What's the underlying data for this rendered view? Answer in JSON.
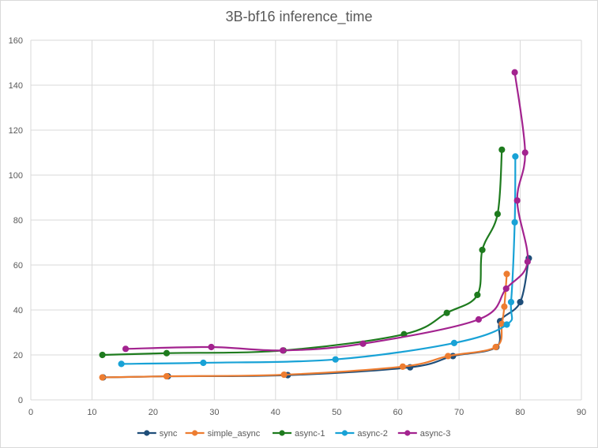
{
  "chart_data": {
    "type": "scatter",
    "title": "3B-bf16 inference_time",
    "xlabel": "",
    "ylabel": "",
    "xlim": [
      0,
      90
    ],
    "ylim": [
      0,
      160
    ],
    "x_ticks": [
      "0",
      "10",
      "20",
      "30",
      "40",
      "50",
      "60",
      "70",
      "80",
      "90"
    ],
    "y_ticks": [
      "0",
      "20",
      "40",
      "60",
      "80",
      "100",
      "120",
      "140",
      "160"
    ],
    "grid": true,
    "smooth_lines": true,
    "legend_position": "bottom",
    "series": [
      {
        "name": "sync",
        "color": "#1f4e79",
        "x": [
          11.8,
          22.4,
          42.0,
          62.0,
          69.0,
          76.1,
          76.7,
          80.0,
          81.4
        ],
        "y": [
          10.0,
          10.5,
          11.0,
          14.5,
          19.5,
          23.5,
          35.0,
          43.5,
          63.0
        ]
      },
      {
        "name": "simple_async",
        "color": "#ed7d31",
        "x": [
          11.7,
          22.2,
          41.4,
          60.8,
          68.2,
          76.0,
          77.0,
          77.4,
          77.8
        ],
        "y": [
          10.0,
          10.5,
          11.2,
          14.8,
          19.5,
          23.5,
          33.8,
          41.5,
          56.0
        ]
      },
      {
        "name": "async-1",
        "color": "#1e7b1e",
        "x": [
          11.7,
          22.2,
          41.3,
          61.0,
          68.0,
          73.0,
          73.8,
          76.3,
          77.0
        ],
        "y": [
          20.0,
          20.8,
          22.0,
          29.2,
          38.7,
          46.7,
          66.7,
          82.7,
          111.3
        ]
      },
      {
        "name": "async-2",
        "color": "#18a2d6",
        "x": [
          14.8,
          28.2,
          49.8,
          69.2,
          77.8,
          78.5,
          79.1,
          79.2
        ],
        "y": [
          16.0,
          16.5,
          18.0,
          25.3,
          33.5,
          43.5,
          79.0,
          108.3
        ]
      },
      {
        "name": "async-3",
        "color": "#a3238f",
        "x": [
          15.5,
          29.5,
          41.2,
          54.3,
          73.2,
          77.7,
          81.2,
          79.5,
          80.8,
          79.1
        ],
        "y": [
          22.7,
          23.5,
          22.0,
          25.0,
          35.8,
          49.5,
          61.5,
          88.7,
          110.0,
          145.7
        ]
      }
    ]
  }
}
